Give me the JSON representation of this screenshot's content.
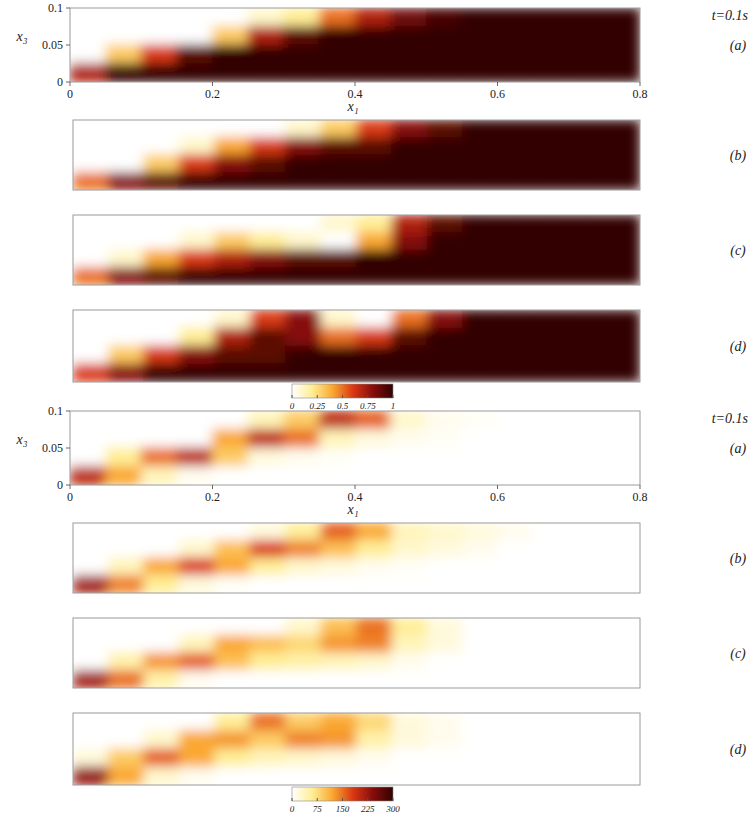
{
  "chart_data": [
    {
      "type": "heatmap",
      "title": "t=0.1s",
      "label": "(a)",
      "xlabel": "x₁",
      "ylabel": "x₃",
      "xlim": [
        0,
        0.8
      ],
      "ylim": [
        0,
        0.1
      ],
      "xticks": [
        0,
        0.2,
        0.4,
        0.6,
        0.8
      ],
      "yticks": [
        0,
        0.05,
        0.1
      ],
      "colorbar_range": [
        0,
        1
      ],
      "cells": [
        [
          0,
          0,
          0,
          0,
          0,
          0.1,
          0.2,
          0.5,
          0.7,
          0.85,
          0.95,
          1,
          1,
          1,
          1,
          1
        ],
        [
          0,
          0,
          0,
          0,
          0.3,
          0.7,
          0.9,
          1,
          1,
          1,
          1,
          1,
          1,
          1,
          1,
          1
        ],
        [
          0,
          0.3,
          0.6,
          0.9,
          1,
          1,
          1,
          1,
          1,
          1,
          1,
          1,
          1,
          1,
          1,
          1
        ],
        [
          0.7,
          1,
          1,
          1,
          1,
          1,
          1,
          1,
          1,
          1,
          1,
          1,
          1,
          1,
          1,
          1
        ]
      ]
    },
    {
      "type": "heatmap",
      "label": "(b)",
      "tick_labels": false,
      "xlim": [
        0,
        0.8
      ],
      "ylim": [
        0,
        0.1
      ],
      "colorbar_range": [
        0,
        1
      ],
      "cells": [
        [
          0,
          0,
          0,
          0,
          0,
          0,
          0.1,
          0.3,
          0.6,
          0.8,
          0.9,
          1,
          1,
          1,
          1,
          1
        ],
        [
          0,
          0,
          0,
          0.1,
          0.4,
          0.6,
          0.8,
          0.9,
          0.9,
          1,
          1,
          1,
          1,
          1,
          1,
          1
        ],
        [
          0,
          0,
          0.3,
          0.6,
          0.8,
          0.9,
          1,
          1,
          1,
          1,
          1,
          1,
          1,
          1,
          1,
          1
        ],
        [
          0.5,
          0.8,
          0.9,
          1,
          1,
          1,
          1,
          1,
          1,
          1,
          1,
          1,
          1,
          1,
          1,
          1
        ]
      ]
    },
    {
      "type": "heatmap",
      "label": "(c)",
      "tick_labels": false,
      "xlim": [
        0,
        0.8
      ],
      "ylim": [
        0,
        0.1
      ],
      "colorbar_range": [
        0,
        1
      ],
      "cells": [
        [
          0,
          0,
          0,
          0,
          0,
          0,
          0,
          0.1,
          0.2,
          0.7,
          0.9,
          1,
          1,
          1,
          1,
          1
        ],
        [
          0,
          0,
          0,
          0.1,
          0.3,
          0.2,
          0.1,
          0,
          0.4,
          0.8,
          1,
          1,
          1,
          1,
          1,
          1
        ],
        [
          0,
          0.1,
          0.4,
          0.6,
          0.7,
          0.8,
          0.9,
          0.9,
          1,
          1,
          1,
          1,
          1,
          1,
          1,
          1
        ],
        [
          0.5,
          0.8,
          0.9,
          1,
          1,
          1,
          1,
          1,
          1,
          1,
          1,
          1,
          1,
          1,
          1,
          1
        ]
      ]
    },
    {
      "type": "heatmap",
      "label": "(d)",
      "tick_labels": false,
      "xlim": [
        0,
        0.8
      ],
      "ylim": [
        0,
        0.1
      ],
      "colorbar_range": [
        0,
        1
      ],
      "colorbar_ticks": [
        0,
        0.25,
        0.5,
        0.75,
        1
      ],
      "cells": [
        [
          0,
          0,
          0,
          0,
          0.1,
          0.6,
          0.8,
          0.1,
          0,
          0.5,
          0.8,
          1,
          1,
          1,
          1,
          1
        ],
        [
          0,
          0,
          0,
          0.2,
          0.7,
          0.9,
          0.8,
          0.5,
          0.6,
          0.9,
          1,
          1,
          1,
          1,
          1,
          1
        ],
        [
          0,
          0.3,
          0.6,
          0.8,
          0.9,
          0.9,
          1,
          1,
          1,
          1,
          1,
          1,
          1,
          1,
          1,
          1
        ],
        [
          0.6,
          0.8,
          1,
          1,
          1,
          1,
          1,
          1,
          1,
          1,
          1,
          1,
          1,
          1,
          1,
          1
        ]
      ]
    },
    {
      "type": "heatmap",
      "title": "t=0.1s",
      "label": "(a)",
      "xlabel": "x₁",
      "ylabel": "x₃",
      "xlim": [
        0,
        0.8
      ],
      "ylim": [
        0,
        0.1
      ],
      "xticks": [
        0,
        0.2,
        0.4,
        0.6,
        0.8
      ],
      "yticks": [
        0,
        0.05,
        0.1
      ],
      "colorbar_range": [
        0,
        300
      ],
      "cells": [
        [
          0,
          0,
          0,
          0,
          0,
          40,
          90,
          200,
          160,
          30,
          10,
          5,
          0,
          0,
          0,
          0
        ],
        [
          0,
          0,
          0,
          0,
          120,
          200,
          150,
          40,
          20,
          10,
          5,
          0,
          0,
          0,
          0,
          0
        ],
        [
          0,
          60,
          150,
          200,
          90,
          20,
          10,
          5,
          0,
          0,
          0,
          0,
          0,
          0,
          0,
          0
        ],
        [
          200,
          120,
          40,
          10,
          0,
          0,
          0,
          0,
          0,
          0,
          0,
          0,
          0,
          0,
          0,
          0
        ]
      ]
    },
    {
      "type": "heatmap",
      "label": "(b)",
      "tick_labels": false,
      "xlim": [
        0,
        0.8
      ],
      "ylim": [
        0,
        0.1
      ],
      "colorbar_range": [
        0,
        300
      ],
      "cells": [
        [
          0,
          0,
          0,
          0,
          0,
          20,
          60,
          160,
          120,
          40,
          30,
          20,
          10,
          0,
          0,
          0
        ],
        [
          0,
          0,
          0,
          30,
          100,
          180,
          140,
          100,
          60,
          30,
          20,
          10,
          0,
          0,
          0,
          0
        ],
        [
          0,
          40,
          120,
          180,
          120,
          60,
          30,
          20,
          10,
          5,
          0,
          0,
          0,
          0,
          0,
          0
        ],
        [
          220,
          140,
          60,
          20,
          5,
          0,
          0,
          0,
          0,
          0,
          0,
          0,
          0,
          0,
          0,
          0
        ]
      ]
    },
    {
      "type": "heatmap",
      "label": "(c)",
      "tick_labels": false,
      "xlim": [
        0,
        0.8
      ],
      "ylim": [
        0,
        0.1
      ],
      "colorbar_range": [
        0,
        300
      ],
      "cells": [
        [
          0,
          0,
          0,
          0,
          0,
          0,
          30,
          100,
          150,
          60,
          20,
          0,
          0,
          0,
          0,
          0
        ],
        [
          0,
          0,
          0,
          40,
          120,
          100,
          80,
          130,
          140,
          40,
          20,
          0,
          0,
          0,
          0,
          0
        ],
        [
          0,
          50,
          130,
          160,
          100,
          60,
          50,
          40,
          30,
          10,
          0,
          0,
          0,
          0,
          0,
          0
        ],
        [
          220,
          150,
          50,
          10,
          0,
          0,
          0,
          0,
          0,
          0,
          0,
          0,
          0,
          0,
          0,
          0
        ]
      ]
    },
    {
      "type": "heatmap",
      "label": "(d)",
      "tick_labels": false,
      "xlim": [
        0,
        0.8
      ],
      "ylim": [
        0,
        0.1
      ],
      "colorbar_range": [
        0,
        300
      ],
      "colorbar_ticks": [
        0,
        75,
        150,
        225,
        300
      ],
      "cells": [
        [
          0,
          0,
          0,
          0,
          60,
          150,
          90,
          120,
          80,
          20,
          10,
          0,
          0,
          0,
          0,
          0
        ],
        [
          0,
          0,
          30,
          120,
          130,
          90,
          140,
          130,
          50,
          20,
          10,
          0,
          0,
          0,
          0,
          0
        ],
        [
          20,
          90,
          160,
          120,
          60,
          40,
          30,
          20,
          10,
          0,
          0,
          0,
          0,
          0,
          0,
          0
        ],
        [
          230,
          120,
          30,
          10,
          0,
          0,
          0,
          0,
          0,
          0,
          0,
          0,
          0,
          0,
          0,
          0
        ]
      ]
    }
  ]
}
